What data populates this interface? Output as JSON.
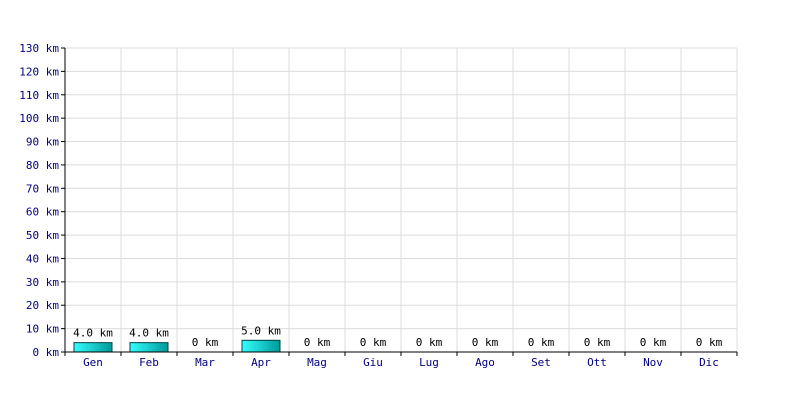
{
  "chart_data": {
    "type": "bar",
    "categories": [
      "Gen",
      "Feb",
      "Mar",
      "Apr",
      "Mag",
      "Giu",
      "Lug",
      "Ago",
      "Set",
      "Ott",
      "Nov",
      "Dic"
    ],
    "values": [
      4.0,
      4.0,
      0,
      5.0,
      0,
      0,
      0,
      0,
      0,
      0,
      0,
      0
    ],
    "value_labels": [
      "4.0 km",
      "4.0 km",
      "0 km",
      "5.0 km",
      "0 km",
      "0 km",
      "0 km",
      "0 km",
      "0 km",
      "0 km",
      "0 km",
      "0 km"
    ],
    "y_ticks": [
      0,
      10,
      20,
      30,
      40,
      50,
      60,
      70,
      80,
      90,
      100,
      110,
      120,
      130
    ],
    "y_tick_labels": [
      "0 km",
      "10 km",
      "20 km",
      "30 km",
      "40 km",
      "50 km",
      "60 km",
      "70 km",
      "80 km",
      "90 km",
      "100 km",
      "110 km",
      "120 km",
      "130 km"
    ],
    "ylim": [
      0,
      130
    ],
    "grid": true,
    "colors": {
      "bar_light": "#33ffff",
      "bar_dark": "#009999",
      "bar_stroke": "#004444",
      "grid": "#dcdcdc",
      "axis": "#000000",
      "tick_text": "#000080",
      "label_text": "#000000"
    }
  }
}
